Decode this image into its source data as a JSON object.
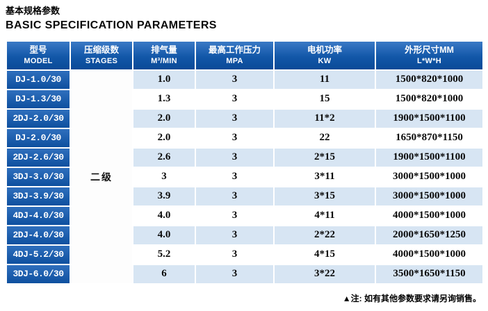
{
  "page": {
    "title_zh": "基本规格参数",
    "title_en": "BASIC SPECIFICATION PARAMETERS",
    "footnote": "▲注: 如有其他参数要求请另询销售。"
  },
  "colors": {
    "header_blue_top": "#3b7ac6",
    "header_blue_bottom": "#0a4a97",
    "row_alt_blue": "#d7e5f3",
    "row_white": "#ffffff"
  },
  "table": {
    "headers": [
      {
        "zh": "型号",
        "en": "MODEL"
      },
      {
        "zh": "压缩级数",
        "en": "STAGES"
      },
      {
        "zh": "排气量",
        "en": "M³/MIN"
      },
      {
        "zh": "最高工作压力",
        "en": "MPA"
      },
      {
        "zh": "电机功率",
        "en": "KW"
      },
      {
        "zh": "外形尺寸MM",
        "en": "L*W*H"
      }
    ],
    "stages_value": "二级",
    "rows": [
      {
        "model": "DJ-1.0/30",
        "displacement": "1.0",
        "pressure": "3",
        "power": "11",
        "dimensions": "1500*820*1000"
      },
      {
        "model": "DJ-1.3/30",
        "displacement": "1.3",
        "pressure": "3",
        "power": "15",
        "dimensions": "1500*820*1000"
      },
      {
        "model": "2DJ-2.0/30",
        "displacement": "2.0",
        "pressure": "3",
        "power": "11*2",
        "dimensions": "1900*1500*1100"
      },
      {
        "model": "DJ-2.0/30",
        "displacement": "2.0",
        "pressure": "3",
        "power": "22",
        "dimensions": "1650*870*1150"
      },
      {
        "model": "2DJ-2.6/30",
        "displacement": "2.6",
        "pressure": "3",
        "power": "2*15",
        "dimensions": "1900*1500*1100"
      },
      {
        "model": "3DJ-3.0/30",
        "displacement": "3",
        "pressure": "3",
        "power": "3*11",
        "dimensions": "3000*1500*1000"
      },
      {
        "model": "3DJ-3.9/30",
        "displacement": "3.9",
        "pressure": "3",
        "power": "3*15",
        "dimensions": "3000*1500*1000"
      },
      {
        "model": "4DJ-4.0/30",
        "displacement": "4.0",
        "pressure": "3",
        "power": "4*11",
        "dimensions": "4000*1500*1000"
      },
      {
        "model": "2DJ-4.0/30",
        "displacement": "4.0",
        "pressure": "3",
        "power": "2*22",
        "dimensions": "2000*1650*1250"
      },
      {
        "model": "4DJ-5.2/30",
        "displacement": "5.2",
        "pressure": "3",
        "power": "4*15",
        "dimensions": "4000*1500*1000"
      },
      {
        "model": "3DJ-6.0/30",
        "displacement": "6",
        "pressure": "3",
        "power": "3*22",
        "dimensions": "3500*1650*1150"
      }
    ]
  }
}
